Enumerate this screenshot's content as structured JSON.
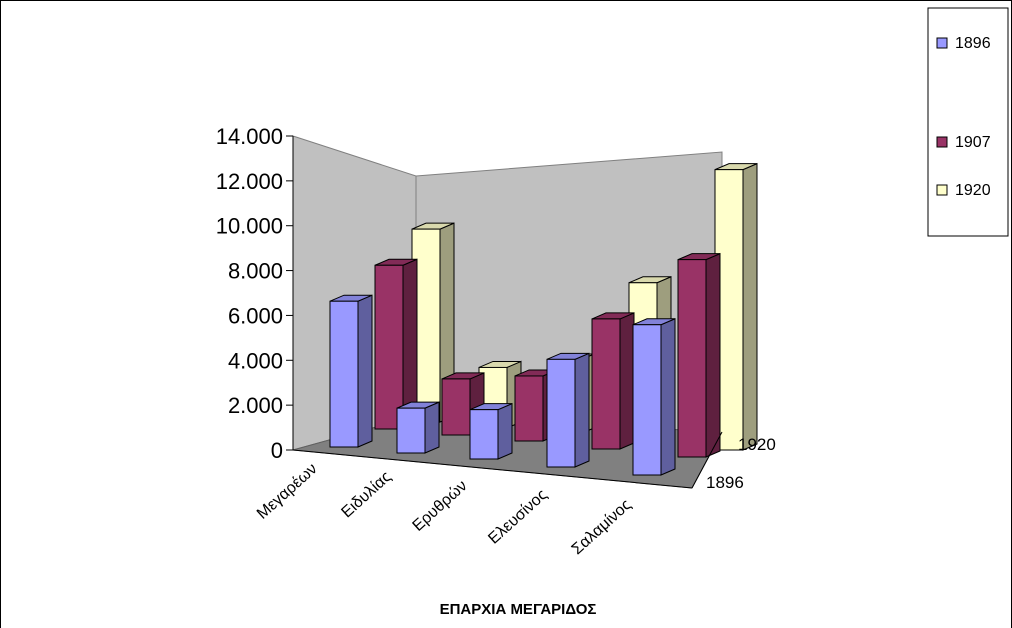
{
  "chart_data": {
    "type": "bar",
    "subtype": "3d-clustered-column",
    "title": "",
    "xlabel": "ΕΠΑΡΧΙΑ ΜΕΓΑΡΙΔΟΣ",
    "ylabel": "",
    "categories": [
      "Μεγαρέων",
      "Ειδυλίας",
      "Ερυθρών",
      "Ελευσίνος",
      "Σαλαμίνος"
    ],
    "series": [
      {
        "name": "1896",
        "color": "#9999ff",
        "values": [
          6500,
          2000,
          2200,
          4800,
          6700
        ]
      },
      {
        "name": "1907",
        "color": "#993366",
        "values": [
          7300,
          2500,
          2900,
          5800,
          8800
        ]
      },
      {
        "name": "1920",
        "color": "#ffffcc",
        "values": [
          8600,
          2700,
          3300,
          7100,
          12500
        ]
      }
    ],
    "y_ticks": [
      "0",
      "2.000",
      "4.000",
      "6.000",
      "8.000",
      "10.000",
      "12.000",
      "14.000"
    ],
    "z_ticks": [
      "1896",
      "1920"
    ],
    "ylim": [
      0,
      14000
    ],
    "grid": false,
    "legend_position": "top-right",
    "wall_color": "#c0c0c0",
    "floor_color": "#808080"
  }
}
